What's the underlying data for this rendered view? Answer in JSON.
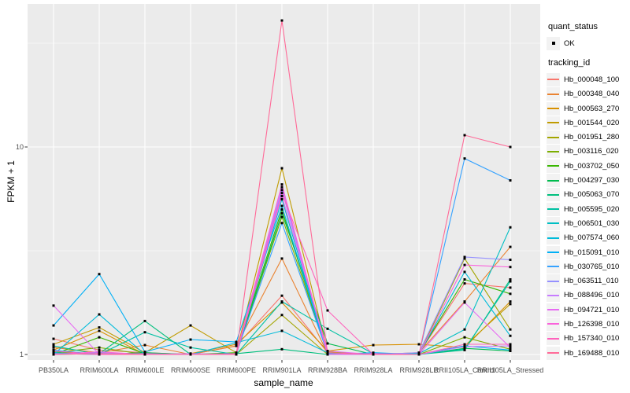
{
  "figure": {
    "background": "#FFFFFF",
    "panel_bg": "#EBEBEB",
    "grid_color": "#FFFFFF",
    "axis_text_color": "#4D4D4D",
    "tick_color": "#333333",
    "legend_key_bg": "#F2F2F2",
    "point_color": "#000000"
  },
  "axes": {
    "x_title": "sample_name",
    "y_title": "FPKM + 1",
    "y_ticks": [
      {
        "label": "1",
        "value": 1
      },
      {
        "label": "10",
        "value": 10
      }
    ]
  },
  "legend": {
    "quant_title": "quant_status",
    "quant_items": [
      {
        "label": "OK",
        "marker": "black-point"
      }
    ],
    "tracking_title": "tracking_id"
  },
  "chart_data": {
    "type": "line",
    "title": "",
    "xlabel": "sample_name",
    "ylabel": "FPKM + 1",
    "y_scale": "log10",
    "ylim": [
      1,
      49
    ],
    "y_major_gridlines": [
      1,
      10
    ],
    "y_minor_gridlines": [
      3.162,
      31.62
    ],
    "grid": true,
    "legend_position": "right",
    "point_marker": {
      "shape": "square",
      "color": "#000000",
      "size": 3
    },
    "quant_status_value": "OK",
    "categories": [
      "PB350LA",
      "RRIM600LA",
      "RRIM600LE",
      "RRIM600SE",
      "RRIM600PE",
      "RRIM901LA",
      "RRIM928BA",
      "RRIM928LA",
      "RRIM928LB",
      "RRII105LA_Control",
      "RRII105LA_Stressed"
    ],
    "series": [
      {
        "name": "Hb_000048_100",
        "color": "#F8766D",
        "values": [
          1.19,
          1.05,
          1.02,
          1.0,
          1.1,
          1.92,
          1.02,
          1.0,
          1.01,
          2.2,
          2.1
        ]
      },
      {
        "name": "Hb_000348_040",
        "color": "#EA8331",
        "values": [
          1.08,
          1.02,
          1.11,
          1.0,
          1.1,
          2.9,
          1.01,
          1.0,
          1.02,
          1.8,
          3.3
        ]
      },
      {
        "name": "Hb_000563_270",
        "color": "#D89000",
        "values": [
          1.05,
          1.3,
          1.0,
          1.01,
          1.12,
          1.78,
          1.04,
          1.11,
          1.12,
          1.08,
          1.8
        ]
      },
      {
        "name": "Hb_001544_020",
        "color": "#C09B00",
        "values": [
          1.12,
          1.35,
          1.02,
          1.38,
          1.02,
          7.9,
          1.03,
          1.0,
          1.0,
          1.1,
          1.75
        ]
      },
      {
        "name": "Hb_001951_280",
        "color": "#A3A500",
        "values": [
          1.03,
          1.0,
          1.01,
          1.0,
          1.0,
          1.55,
          1.0,
          1.01,
          1.0,
          2.9,
          1.32
        ]
      },
      {
        "name": "Hb_003116_020",
        "color": "#7CAE00",
        "values": [
          1.02,
          1.08,
          1.0,
          1.0,
          1.01,
          4.6,
          1.01,
          1.0,
          1.0,
          1.21,
          1.06
        ]
      },
      {
        "name": "Hb_003702_050",
        "color": "#39B600",
        "values": [
          1.0,
          1.21,
          1.01,
          1.0,
          1.02,
          5.0,
          1.0,
          1.0,
          1.01,
          2.3,
          1.96
        ]
      },
      {
        "name": "Hb_004297_030",
        "color": "#00BB4E",
        "values": [
          1.01,
          1.0,
          1.02,
          1.0,
          1.0,
          4.8,
          1.13,
          1.0,
          1.0,
          1.07,
          1.04
        ]
      },
      {
        "name": "Hb_005063_070",
        "color": "#00BF7D",
        "values": [
          1.0,
          1.01,
          1.45,
          1.0,
          1.01,
          1.06,
          1.0,
          1.0,
          1.0,
          1.05,
          2.3
        ]
      },
      {
        "name": "Hb_005595_020",
        "color": "#00C1A3",
        "values": [
          1.1,
          1.0,
          1.28,
          1.08,
          1.0,
          1.8,
          1.33,
          1.01,
          1.0,
          1.06,
          2.25
        ]
      },
      {
        "name": "Hb_006501_030",
        "color": "#00BFC4",
        "values": [
          1.02,
          1.0,
          1.0,
          1.0,
          1.0,
          5.6,
          1.0,
          1.0,
          1.01,
          1.32,
          4.1
        ]
      },
      {
        "name": "Hb_007574_060",
        "color": "#00BBDA",
        "values": [
          1.0,
          1.56,
          1.0,
          1.0,
          1.14,
          1.3,
          1.02,
          1.0,
          1.0,
          2.5,
          1.23
        ]
      },
      {
        "name": "Hb_015091_010",
        "color": "#00B0F6",
        "values": [
          1.38,
          2.44,
          1.03,
          1.18,
          1.15,
          5.2,
          1.0,
          1.02,
          1.0,
          1.1,
          1.05
        ]
      },
      {
        "name": "Hb_030765_010",
        "color": "#35A2FF",
        "values": [
          1.05,
          1.0,
          1.0,
          1.0,
          1.01,
          4.3,
          1.01,
          1.0,
          1.0,
          8.8,
          6.9
        ]
      },
      {
        "name": "Hb_063511_010",
        "color": "#9590FF",
        "values": [
          1.0,
          1.02,
          1.0,
          1.0,
          1.0,
          6.2,
          1.0,
          1.0,
          1.02,
          2.95,
          2.86
        ]
      },
      {
        "name": "Hb_088496_010",
        "color": "#C77CFF",
        "values": [
          1.01,
          1.0,
          1.0,
          1.01,
          1.0,
          6.4,
          1.0,
          1.0,
          1.0,
          1.09,
          1.1
        ]
      },
      {
        "name": "Hb_094721_010",
        "color": "#E76BF3",
        "values": [
          1.72,
          1.0,
          1.01,
          1.0,
          1.0,
          5.8,
          1.04,
          1.0,
          1.0,
          1.78,
          1.08
        ]
      },
      {
        "name": "Hb_126398_010",
        "color": "#FA62DB",
        "values": [
          1.0,
          1.03,
          1.0,
          1.0,
          1.01,
          6.6,
          1.0,
          1.01,
          1.0,
          2.7,
          2.64
        ]
      },
      {
        "name": "Hb_157340_010",
        "color": "#FF62BC",
        "values": [
          1.04,
          1.0,
          1.0,
          1.0,
          1.0,
          6.0,
          1.63,
          1.0,
          1.0,
          1.12,
          1.12
        ]
      },
      {
        "name": "Hb_169488_010",
        "color": "#FF6A98",
        "values": [
          1.0,
          1.01,
          1.0,
          1.0,
          1.0,
          40.7,
          1.02,
          1.0,
          1.0,
          11.4,
          10.0
        ]
      }
    ]
  }
}
